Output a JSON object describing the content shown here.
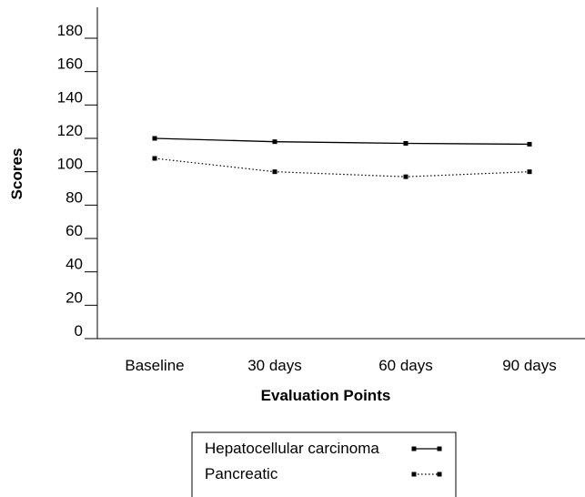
{
  "chart_data": {
    "type": "line",
    "categories": [
      "Baseline",
      "30 days",
      "60 days",
      "90 days"
    ],
    "series": [
      {
        "name": "Hepatocellular carcinoma",
        "values": [
          120,
          118,
          117,
          116.5
        ],
        "line_style": "solid",
        "color": "#000000"
      },
      {
        "name": "Pancreatic",
        "values": [
          108,
          100,
          97,
          100
        ],
        "line_style": "dotted",
        "color": "#000000"
      }
    ],
    "xlabel": "Evaluation Points",
    "ylabel": "Scores",
    "ylim": [
      0,
      180
    ],
    "yticks": [
      0,
      20,
      40,
      60,
      80,
      100,
      120,
      140,
      160,
      180
    ],
    "grid": false,
    "legend_position": "bottom"
  }
}
